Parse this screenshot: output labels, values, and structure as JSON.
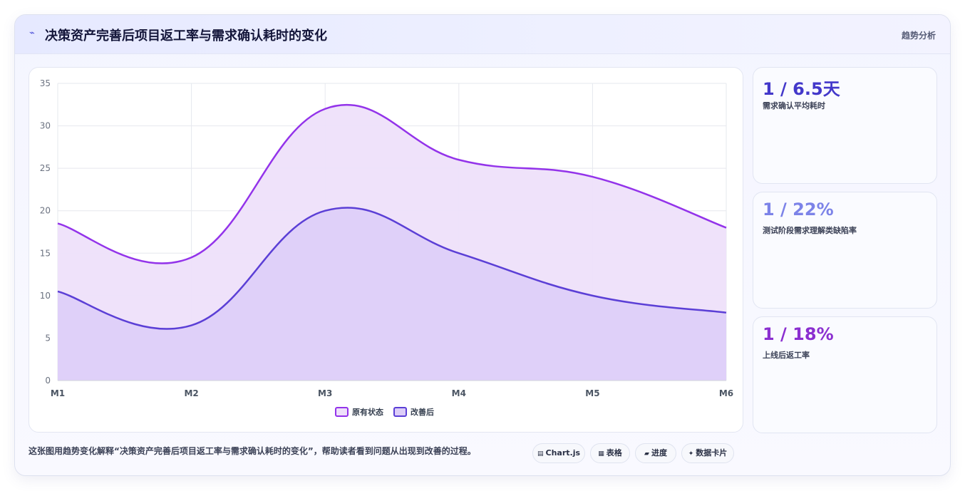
{
  "header": {
    "title": "决策资产完善后项目返工率与需求确认耗时的变化",
    "tag": "趋势分析",
    "icon": "trend-icon"
  },
  "kpis": [
    {
      "value": "1 / 6.5天",
      "label": "需求确认平均耗时",
      "color": "#4338ca"
    },
    {
      "value": "1 / 22%",
      "label": "测试阶段需求理解类缺陷率",
      "color": "#7c83e8"
    },
    {
      "value": "1 / 18%",
      "label": "上线后返工率",
      "color": "#8b2fd0"
    }
  ],
  "footer": {
    "text": "这张图用趋势变化解释“决策资产完善后项目返工率与需求确认耗时的变化”，帮助读者看到问题从出现到改善的过程。",
    "chips": [
      {
        "icon": "▤",
        "label": "Chart.js"
      },
      {
        "icon": "▦",
        "label": "表格"
      },
      {
        "icon": "▰",
        "label": "进度"
      },
      {
        "icon": "✦",
        "label": "数据卡片"
      }
    ]
  },
  "chart_data": {
    "type": "area",
    "categories": [
      "M1",
      "M2",
      "M3",
      "M4",
      "M5",
      "M6"
    ],
    "ylim": [
      0,
      35
    ],
    "yticks": [
      0,
      5,
      10,
      15,
      20,
      25,
      30,
      35
    ],
    "grid": true,
    "legend": "bottom",
    "series": [
      {
        "name": "原有状态",
        "values": [
          18.5,
          14.5,
          32,
          26,
          24,
          18
        ],
        "color": "#9333ea",
        "fill": "#eee0fa"
      },
      {
        "name": "改善后",
        "values": [
          10.5,
          6.5,
          20,
          15,
          10,
          8
        ],
        "color": "#5b3fd6",
        "fill": "#dccdf8"
      }
    ]
  }
}
